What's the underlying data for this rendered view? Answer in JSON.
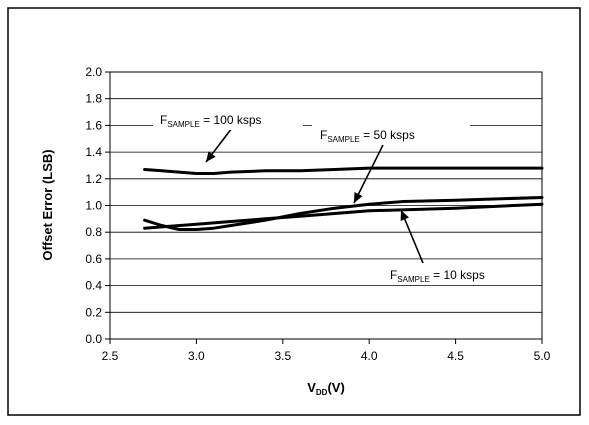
{
  "chart_data": {
    "type": "line",
    "title": "",
    "xlabel": {
      "main": "V",
      "sub": "DD",
      "rest": "(V)"
    },
    "ylabel": "Offset Error (LSB)",
    "xlim": [
      2.5,
      5.0
    ],
    "ylim": [
      0.0,
      2.0
    ],
    "xticks": [
      "2.5",
      "3.0",
      "3.5",
      "4.0",
      "4.5",
      "5.0"
    ],
    "yticks": [
      "0.0",
      "0.2",
      "0.4",
      "0.6",
      "0.8",
      "1.0",
      "1.2",
      "1.4",
      "1.6",
      "1.8",
      "2.0"
    ],
    "grid": true,
    "legend": "none",
    "series": [
      {
        "name": "FSAMPLE = 100 ksps",
        "x": [
          2.7,
          2.8,
          2.9,
          3.0,
          3.1,
          3.2,
          3.4,
          3.6,
          3.8,
          4.0,
          4.5,
          5.0
        ],
        "y": [
          1.27,
          1.26,
          1.25,
          1.24,
          1.24,
          1.25,
          1.26,
          1.26,
          1.27,
          1.28,
          1.28,
          1.28
        ]
      },
      {
        "name": "FSAMPLE = 50 ksps",
        "x": [
          2.7,
          2.8,
          2.9,
          3.0,
          3.1,
          3.2,
          3.4,
          3.6,
          3.8,
          4.0,
          4.2,
          4.5,
          5.0
        ],
        "y": [
          0.89,
          0.85,
          0.82,
          0.82,
          0.83,
          0.85,
          0.89,
          0.94,
          0.98,
          1.01,
          1.03,
          1.04,
          1.06
        ]
      },
      {
        "name": "FSAMPLE = 10 ksps",
        "x": [
          2.7,
          2.8,
          3.0,
          3.2,
          3.4,
          3.6,
          3.8,
          4.0,
          4.5,
          5.0
        ],
        "y": [
          0.83,
          0.84,
          0.86,
          0.88,
          0.9,
          0.92,
          0.94,
          0.96,
          0.98,
          1.01
        ]
      }
    ],
    "annotations": [
      {
        "main": "F",
        "sub": "SAMPLE",
        "rest": " = 100 ksps",
        "series": 0
      },
      {
        "main": "F",
        "sub": "SAMPLE",
        "rest": " = 50 ksps",
        "series": 1
      },
      {
        "main": "F",
        "sub": "SAMPLE",
        "rest": " = 10 ksps",
        "series": 2
      }
    ]
  }
}
